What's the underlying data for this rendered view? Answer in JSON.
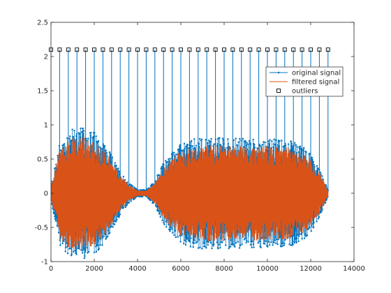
{
  "chart_data": {
    "type": "line",
    "title": "",
    "xlabel": "",
    "ylabel": "",
    "xlim": [
      0,
      14000
    ],
    "ylim": [
      -1,
      2.5
    ],
    "xticks": [
      0,
      2000,
      4000,
      6000,
      8000,
      10000,
      12000,
      14000
    ],
    "xtick_labels": [
      "0",
      "2000",
      "4000",
      "6000",
      "8000",
      "10000",
      "12000",
      "14000"
    ],
    "yticks": [
      -1,
      -0.5,
      0,
      0.5,
      1,
      1.5,
      2,
      2.5
    ],
    "ytick_labels": [
      "-1",
      "-0.5",
      "0",
      "0.5",
      "1",
      "1.5",
      "2",
      "2.5"
    ],
    "grid": false,
    "legend_position": "top-right",
    "series": [
      {
        "name": "original signal",
        "color": "#0072bd",
        "description": "noisy signal with point markers, envelope amplitude vs x",
        "envelope": {
          "x": [
            0,
            400,
            800,
            1200,
            1600,
            2000,
            2400,
            2800,
            3200,
            3600,
            4000,
            4400,
            4800,
            5200,
            5600,
            6000,
            6400,
            7000,
            8000,
            9000,
            10000,
            11000,
            11600,
            12000,
            12400,
            12800
          ],
          "amplitude": [
            0.1,
            0.75,
            0.92,
            0.97,
            0.95,
            0.9,
            0.78,
            0.55,
            0.32,
            0.15,
            0.05,
            0.05,
            0.18,
            0.45,
            0.62,
            0.72,
            0.78,
            0.82,
            0.82,
            0.8,
            0.8,
            0.78,
            0.7,
            0.58,
            0.35,
            0.05
          ]
        }
      },
      {
        "name": "filtered signal",
        "color": "#d95319"
      },
      {
        "name": "outliers",
        "color": "#000000",
        "marker": "square",
        "x": [
          0,
          400,
          800,
          1200,
          1600,
          2000,
          2400,
          2800,
          3200,
          3600,
          4000,
          4400,
          4800,
          5200,
          5600,
          6000,
          6400,
          6800,
          7200,
          7600,
          8000,
          8400,
          8800,
          9200,
          9600,
          10000,
          10400,
          10800,
          11200,
          11600,
          12000,
          12400,
          12800
        ],
        "y": 2.1
      }
    ]
  }
}
